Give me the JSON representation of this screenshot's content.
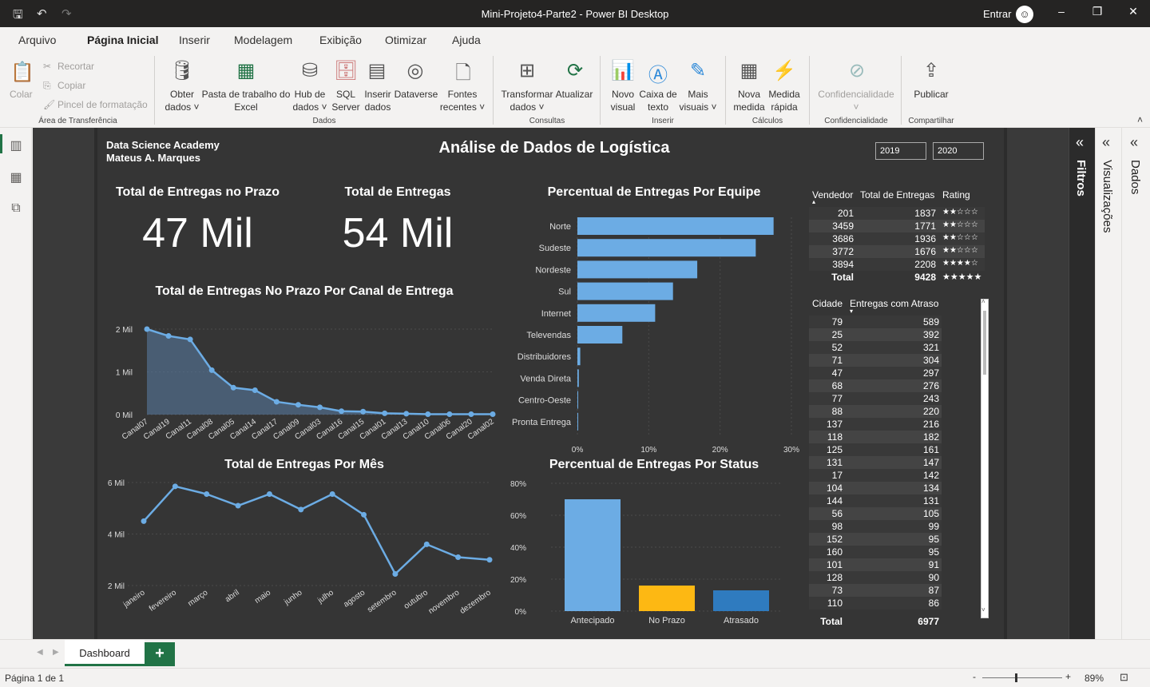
{
  "window": {
    "title": "Mini-Projeto4-Parte2 - Power BI Desktop",
    "signin": "Entrar"
  },
  "menu": [
    "Arquivo",
    "Página Inicial",
    "Inserir",
    "Modelagem",
    "Exibição",
    "Otimizar",
    "Ajuda"
  ],
  "ribbon": {
    "clipboard": {
      "paste": "Colar",
      "cut": "Recortar",
      "copy": "Copiar",
      "format": "Pincel de formatação",
      "group": "Área de Transferência"
    },
    "data": {
      "get": [
        "Obter",
        "dados ˅"
      ],
      "excel": [
        "Pasta de trabalho do",
        "Excel"
      ],
      "hub": [
        "Hub de",
        "dados ˅"
      ],
      "sql": [
        "SQL",
        "Server"
      ],
      "enter": [
        "Inserir",
        "dados"
      ],
      "dataverse": [
        "Dataverse",
        ""
      ],
      "recent": [
        "Fontes",
        "recentes ˅"
      ],
      "group": "Dados"
    },
    "queries": {
      "transform": [
        "Transformar",
        "dados ˅"
      ],
      "refresh": [
        "Atualizar",
        ""
      ],
      "group": "Consultas"
    },
    "insert": {
      "visual": [
        "Novo",
        "visual"
      ],
      "textbox": [
        "Caixa de",
        "texto"
      ],
      "more": [
        "Mais",
        "visuais ˅"
      ],
      "group": "Inserir"
    },
    "calc": {
      "measure": [
        "Nova",
        "medida"
      ],
      "quick": [
        "Medida",
        "rápida"
      ],
      "group": "Cálculos"
    },
    "sens": {
      "label": "Confidencialidade",
      "group": "Confidencialidade"
    },
    "share": {
      "publish": "Publicar",
      "group": "Compartilhar"
    }
  },
  "report": {
    "org": "Data Science Academy",
    "author": "Mateus A. Marques",
    "title": "Análise de Dados de Logística",
    "years": [
      "2019",
      "2020"
    ],
    "kpi1": {
      "label": "Total de Entregas no Prazo",
      "value": "47 Mil"
    },
    "kpi2": {
      "label": "Total de Entregas",
      "value": "54 Mil"
    },
    "vendors": {
      "headers": [
        "Vendedor",
        "Total de Entregas",
        "Rating"
      ],
      "rows": [
        [
          "201",
          "1837",
          "★★☆☆☆"
        ],
        [
          "3459",
          "1771",
          "★★☆☆☆"
        ],
        [
          "3686",
          "1936",
          "★★☆☆☆"
        ],
        [
          "3772",
          "1676",
          "★★☆☆☆"
        ],
        [
          "3894",
          "2208",
          "★★★★☆"
        ]
      ],
      "total": [
        "Total",
        "9428",
        "★★★★★"
      ]
    },
    "cities": {
      "headers": [
        "Cidade",
        "Entregas com Atraso"
      ],
      "rows": [
        [
          "79",
          "589"
        ],
        [
          "25",
          "392"
        ],
        [
          "52",
          "321"
        ],
        [
          "71",
          "304"
        ],
        [
          "47",
          "297"
        ],
        [
          "68",
          "276"
        ],
        [
          "77",
          "243"
        ],
        [
          "88",
          "220"
        ],
        [
          "137",
          "216"
        ],
        [
          "118",
          "182"
        ],
        [
          "125",
          "161"
        ],
        [
          "131",
          "147"
        ],
        [
          "17",
          "142"
        ],
        [
          "104",
          "134"
        ],
        [
          "144",
          "131"
        ],
        [
          "56",
          "105"
        ],
        [
          "98",
          "99"
        ],
        [
          "152",
          "95"
        ],
        [
          "160",
          "95"
        ],
        [
          "101",
          "91"
        ],
        [
          "128",
          "90"
        ],
        [
          "73",
          "87"
        ],
        [
          "110",
          "86"
        ]
      ],
      "total": [
        "Total",
        "6977"
      ]
    }
  },
  "chart_data": [
    {
      "type": "area",
      "title": "Total de Entregas No Prazo Por Canal de Entrega",
      "yticks": [
        "0 Mil",
        "1 Mil",
        "2 Mil"
      ],
      "ylim": [
        0,
        2000
      ],
      "categories": [
        "Canal07",
        "Canal19",
        "Canal11",
        "Canal08",
        "Canal05",
        "Canal14",
        "Canal17",
        "Canal09",
        "Canal03",
        "Canal16",
        "Canal15",
        "Canal01",
        "Canal13",
        "Canal10",
        "Canal06",
        "Canal20",
        "Canal02"
      ],
      "values": [
        2000,
        1840,
        1760,
        1040,
        630,
        570,
        300,
        230,
        170,
        80,
        70,
        30,
        20,
        10,
        10,
        10,
        10
      ]
    },
    {
      "type": "bar",
      "orientation": "horizontal",
      "title": "Percentual de Entregas Por Equipe",
      "xticks": [
        "0%",
        "10%",
        "20%",
        "30%"
      ],
      "xlim": [
        0,
        30
      ],
      "categories": [
        "Norte",
        "Sudeste",
        "Nordeste",
        "Sul",
        "Internet",
        "Televendas",
        "Distribuidores",
        "Venda Direta",
        "Centro-Oeste",
        "Pronta Entrega"
      ],
      "values": [
        27.5,
        25,
        16.8,
        13.4,
        10.9,
        6.3,
        0.4,
        0.2,
        0.1,
        0.1
      ],
      "color": "#6cace4"
    },
    {
      "type": "line",
      "title": "Total de Entregas Por Mês",
      "yticks": [
        "2 Mil",
        "4 Mil",
        "6 Mil"
      ],
      "ylim": [
        2000,
        6000
      ],
      "categories": [
        "janeiro",
        "fevereiro",
        "março",
        "abril",
        "maio",
        "junho",
        "julho",
        "agosto",
        "setembro",
        "outubro",
        "novembro",
        "dezembro"
      ],
      "values": [
        4500,
        5850,
        5550,
        5100,
        5550,
        4950,
        5550,
        4750,
        2450,
        3600,
        3100,
        3000
      ]
    },
    {
      "type": "bar",
      "title": "Percentual de Entregas Por Status",
      "yticks": [
        "0%",
        "20%",
        "40%",
        "60%",
        "80%"
      ],
      "ylim": [
        0,
        80
      ],
      "categories": [
        "Antecipado",
        "No Prazo",
        "Atrasado"
      ],
      "values": [
        70,
        16,
        13
      ],
      "colors": [
        "#6cace4",
        "#fdb813",
        "#2f7bbf"
      ]
    }
  ],
  "side": {
    "filters": "Filtros",
    "viz": "Visualizações",
    "data": "Dados"
  },
  "page": {
    "tab": "Dashboard",
    "status": "Página 1 de 1",
    "zoom": "89%"
  }
}
